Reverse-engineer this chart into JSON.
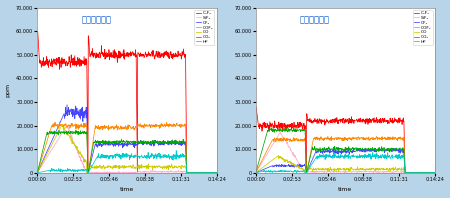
{
  "title_left": "《最適化前》",
  "title_right": "《最適化後》",
  "xlabel": "time",
  "ylabel": "ppm",
  "background_color": "#b8d4e8",
  "plot_bg_color": "#ffffff",
  "title_color": "#0055cc",
  "ylim": [
    0,
    70000
  ],
  "yticks": [
    0,
    10000,
    20000,
    30000,
    40000,
    50000,
    60000,
    70000
  ],
  "xtick_labels": [
    "0:00:00",
    "0:02:53",
    "0:05:46",
    "0:08:38",
    "0:11:31",
    "0:14:24"
  ],
  "legend_labels": [
    "C₂F₆",
    "SiF₄",
    "CF₄",
    "COF₂",
    "CO",
    "CO₂",
    "HF"
  ],
  "legend_colors": [
    "#ff0000",
    "#ffaacc",
    "#4444ff",
    "#ff8800",
    "#cccc00",
    "#00aa00",
    "#00cccc"
  ],
  "n": 600,
  "t_max": 864,
  "s1e": 165,
  "s2s": 170,
  "s2e": 330,
  "s3s": 335,
  "s3e": 495,
  "s4s": 500
}
